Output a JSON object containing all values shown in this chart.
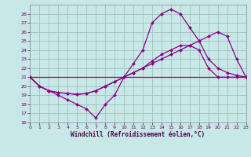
{
  "xlabel": "Windchill (Refroidissement éolien,°C)",
  "bg_color": "#c8e8e8",
  "grid_color": "#a0c0c0",
  "line_color": "#880088",
  "xlim": [
    0,
    23
  ],
  "ylim": [
    16,
    29
  ],
  "xticks": [
    0,
    1,
    2,
    3,
    4,
    5,
    6,
    7,
    8,
    9,
    10,
    11,
    12,
    13,
    14,
    15,
    16,
    17,
    18,
    19,
    20,
    21,
    22,
    23
  ],
  "yticks": [
    16,
    17,
    18,
    19,
    20,
    21,
    22,
    23,
    24,
    25,
    26,
    27,
    28
  ],
  "line1_x": [
    0,
    1,
    2,
    3,
    4,
    5,
    6,
    7,
    8,
    9,
    10,
    11,
    12,
    13,
    14,
    15,
    16,
    17,
    18,
    19,
    20,
    21,
    22,
    23
  ],
  "line1_y": [
    21,
    20,
    19.5,
    19,
    18.5,
    18,
    17.5,
    16.5,
    18,
    19,
    21,
    22.5,
    24,
    27,
    28,
    28.5,
    28,
    26.5,
    25,
    23,
    22,
    21.5,
    21.2,
    21
  ],
  "line2_x": [
    0,
    1,
    2,
    3,
    4,
    5,
    6,
    7,
    8,
    9,
    10,
    11,
    12,
    13,
    14,
    15,
    16,
    17,
    18,
    19,
    20,
    21,
    22,
    23
  ],
  "line2_y": [
    21,
    20,
    19.5,
    19.3,
    19.2,
    19.1,
    19.2,
    19.5,
    20,
    20.5,
    21,
    21.5,
    22,
    22.5,
    23,
    23.5,
    24,
    24.5,
    25,
    25.5,
    26,
    25.5,
    23,
    21
  ],
  "line3_x": [
    0,
    1,
    2,
    3,
    4,
    5,
    6,
    7,
    8,
    9,
    10,
    11,
    12,
    13,
    14,
    15,
    16,
    17,
    18,
    19,
    20,
    21,
    22,
    23
  ],
  "line3_y": [
    21,
    20,
    19.5,
    19.3,
    19.2,
    19.1,
    19.2,
    19.5,
    20,
    20.5,
    21,
    21.5,
    22,
    22.8,
    23.5,
    24,
    24.5,
    24.5,
    24,
    22,
    21,
    21,
    21,
    21
  ],
  "line4_x": [
    0,
    23
  ],
  "line4_y": [
    21,
    21
  ]
}
